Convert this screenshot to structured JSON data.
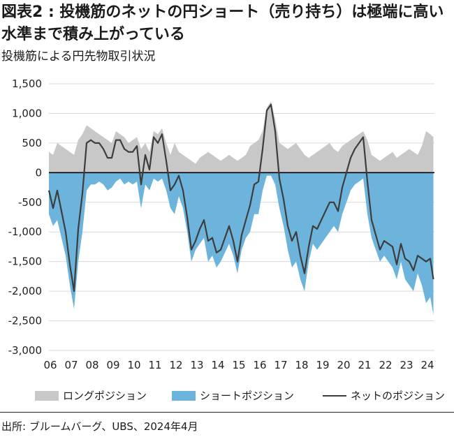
{
  "header": {
    "title": "図表2 : 投機筋のネットの円ショート（売り持ち）は極端に高い水準まで積み上がっている",
    "subtitle": "投機筋による円先物取引状況"
  },
  "legend": {
    "long_label": "ロングポジション",
    "short_label": "ショートポジション",
    "net_label": "ネットのポジション"
  },
  "source": "出所: ブルームバーグ、UBS、2024年4月",
  "colors": {
    "long": "#c8c8c8",
    "short": "#6cb4dc",
    "net": "#3d3d3d",
    "zero_line": "#000000",
    "grid": "#d9d9d9"
  },
  "chart_data": {
    "type": "area",
    "title": "投機筋による円先物取引状況",
    "xlabel": "",
    "ylabel": "",
    "ylim": [
      -3000,
      1500
    ],
    "xlim": [
      2006.0,
      2024.4
    ],
    "yticks": [
      1500,
      1000,
      500,
      0,
      -500,
      -1000,
      -1500,
      -2000,
      -2500,
      -3000
    ],
    "ytick_labels": [
      "1,500",
      "1,000",
      "500",
      "0",
      "-500",
      "-1,000",
      "-1,500",
      "-2,000",
      "-2,500",
      "-3,000"
    ],
    "xticks": [
      2006,
      2007,
      2008,
      2009,
      2010,
      2011,
      2012,
      2013,
      2014,
      2015,
      2016,
      2017,
      2018,
      2019,
      2020,
      2021,
      2022,
      2023,
      2024
    ],
    "xtick_labels": [
      "06",
      "07",
      "08",
      "09",
      "10",
      "11",
      "12",
      "13",
      "14",
      "15",
      "16",
      "17",
      "18",
      "19",
      "20",
      "21",
      "22",
      "23",
      "24"
    ],
    "grid": true,
    "legend_position": "bottom",
    "x": [
      2006.0,
      2006.2,
      2006.4,
      2006.6,
      2006.8,
      2007.0,
      2007.2,
      2007.4,
      2007.6,
      2007.8,
      2008.0,
      2008.2,
      2008.4,
      2008.6,
      2008.8,
      2009.0,
      2009.2,
      2009.4,
      2009.6,
      2009.8,
      2010.0,
      2010.2,
      2010.4,
      2010.6,
      2010.8,
      2011.0,
      2011.2,
      2011.4,
      2011.6,
      2011.8,
      2012.0,
      2012.2,
      2012.4,
      2012.6,
      2012.8,
      2013.0,
      2013.2,
      2013.4,
      2013.6,
      2013.8,
      2014.0,
      2014.2,
      2014.4,
      2014.6,
      2014.8,
      2015.0,
      2015.2,
      2015.4,
      2015.6,
      2015.8,
      2016.0,
      2016.2,
      2016.4,
      2016.6,
      2016.8,
      2017.0,
      2017.2,
      2017.4,
      2017.6,
      2017.8,
      2018.0,
      2018.2,
      2018.4,
      2018.6,
      2018.8,
      2019.0,
      2019.2,
      2019.4,
      2019.6,
      2019.8,
      2020.0,
      2020.2,
      2020.4,
      2020.6,
      2020.8,
      2021.0,
      2021.2,
      2021.4,
      2021.6,
      2021.8,
      2022.0,
      2022.2,
      2022.4,
      2022.6,
      2022.8,
      2023.0,
      2023.2,
      2023.4,
      2023.6,
      2023.8,
      2024.0,
      2024.2,
      2024.35
    ],
    "series": [
      {
        "name": "ロングポジション",
        "values": [
          350,
          300,
          500,
          450,
          400,
          350,
          300,
          550,
          650,
          800,
          750,
          700,
          650,
          600,
          550,
          500,
          700,
          650,
          600,
          500,
          550,
          600,
          400,
          500,
          350,
          700,
          650,
          750,
          500,
          300,
          500,
          350,
          300,
          250,
          200,
          150,
          250,
          300,
          350,
          300,
          250,
          200,
          250,
          300,
          250,
          200,
          250,
          300,
          450,
          500,
          550,
          700,
          1100,
          1200,
          900,
          500,
          450,
          400,
          450,
          500,
          400,
          300,
          250,
          300,
          350,
          400,
          450,
          500,
          400,
          350,
          450,
          500,
          550,
          600,
          650,
          700,
          550,
          300,
          250,
          200,
          250,
          300,
          350,
          250,
          300,
          350,
          400,
          350,
          300,
          450,
          700,
          650,
          600
        ]
      },
      {
        "name": "ショートポジション",
        "values": [
          -700,
          -900,
          -800,
          -1100,
          -1400,
          -1900,
          -2300,
          -1500,
          -1000,
          -300,
          -200,
          -200,
          -150,
          -200,
          -300,
          -250,
          -150,
          -100,
          -200,
          -150,
          -200,
          -150,
          -600,
          -200,
          -300,
          -100,
          -150,
          -100,
          -300,
          -600,
          -700,
          -400,
          -600,
          -1000,
          -1500,
          -1300,
          -1200,
          -1100,
          -1500,
          -1400,
          -1600,
          -1500,
          -1350,
          -1200,
          -1400,
          -1700,
          -1300,
          -1100,
          -1000,
          -700,
          -700,
          -300,
          -50,
          -50,
          -200,
          -600,
          -900,
          -1300,
          -1600,
          -1500,
          -1800,
          -2000,
          -1500,
          -1200,
          -1300,
          -1200,
          -1100,
          -1000,
          -900,
          -1000,
          -700,
          -500,
          -300,
          -200,
          -150,
          -100,
          -700,
          -1100,
          -1300,
          -1500,
          -1400,
          -1500,
          -1600,
          -1800,
          -1500,
          -1800,
          -1900,
          -2000,
          -1700,
          -1900,
          -2200,
          -2100,
          -2400
        ]
      },
      {
        "name": "ネットのポジション",
        "values": [
          -300,
          -600,
          -300,
          -650,
          -1000,
          -1550,
          -2000,
          -950,
          -350,
          500,
          550,
          500,
          500,
          400,
          250,
          250,
          550,
          550,
          400,
          350,
          350,
          450,
          -200,
          300,
          50,
          600,
          500,
          650,
          200,
          -300,
          -200,
          -50,
          -300,
          -750,
          -1300,
          -1150,
          -950,
          -800,
          -1150,
          -1100,
          -1350,
          -1300,
          -1100,
          -900,
          -1150,
          -1500,
          -1050,
          -800,
          -550,
          -200,
          -150,
          400,
          1050,
          1150,
          700,
          -100,
          -450,
          -900,
          -1150,
          -1000,
          -1400,
          -1700,
          -1250,
          -900,
          -950,
          -800,
          -650,
          -500,
          -500,
          -650,
          -250,
          0,
          250,
          400,
          500,
          600,
          -150,
          -800,
          -1050,
          -1300,
          -1150,
          -1200,
          -1250,
          -1550,
          -1200,
          -1450,
          -1500,
          -1650,
          -1400,
          -1450,
          -1500,
          -1450,
          -1800
        ]
      }
    ]
  }
}
